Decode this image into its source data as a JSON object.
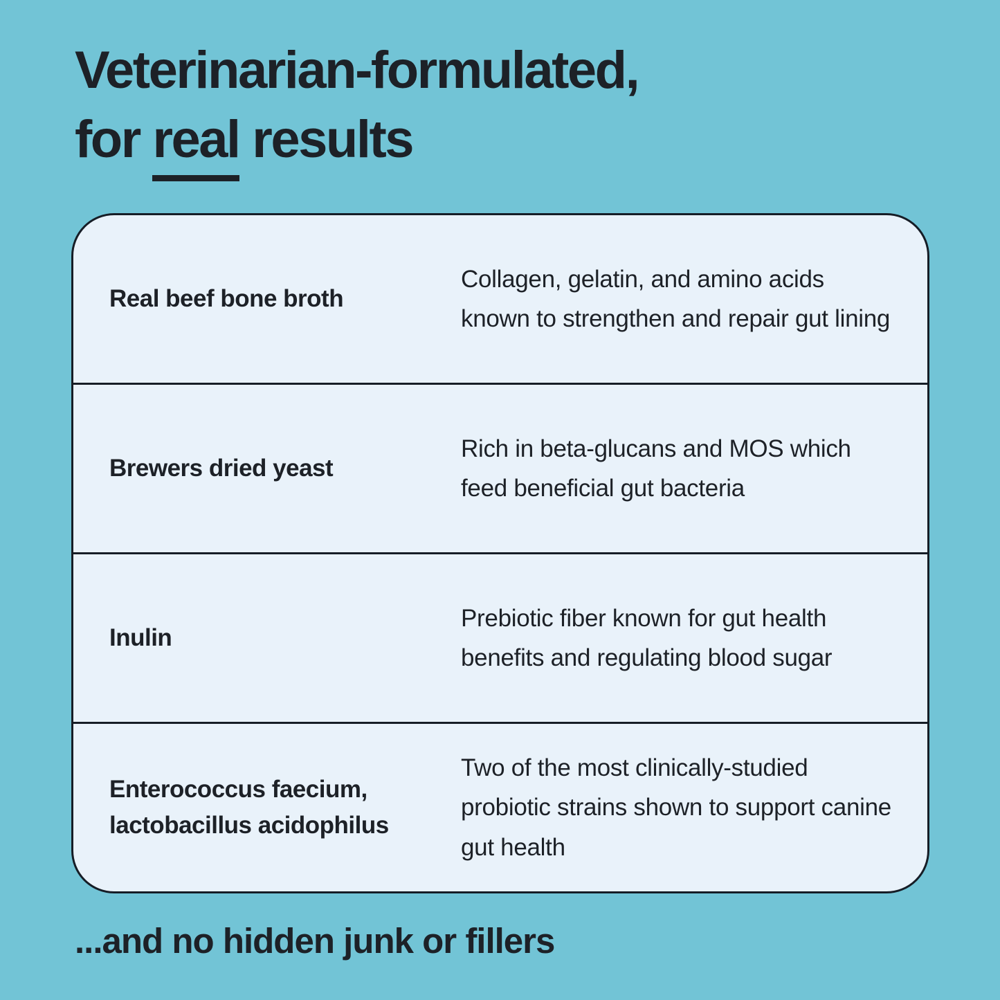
{
  "colors": {
    "background": "#72c4d6",
    "card_background": "#e9f2fa",
    "border": "#161d26",
    "text": "#1d2127"
  },
  "title": {
    "line1": "Veterinarian-formulated,",
    "line2_prefix": "for ",
    "line2_underlined": "real",
    "line2_suffix": " results"
  },
  "table": {
    "rows": [
      {
        "name": "Real beef bone broth",
        "description": "Collagen, gelatin, and amino acids known to strengthen and repair gut lining"
      },
      {
        "name": "Brewers dried yeast",
        "description": "Rich in beta-glucans and MOS which feed beneficial gut bacteria"
      },
      {
        "name": "Inulin",
        "description": "Prebiotic fiber known for gut health benefits and regulating blood sugar"
      },
      {
        "name": "Enterococcus faecium, lactobacillus acidophilus",
        "description": "Two of the most clinically-studied probiotic strains shown to support canine gut health"
      }
    ]
  },
  "footer": {
    "text": "...and no hidden junk or fillers"
  }
}
